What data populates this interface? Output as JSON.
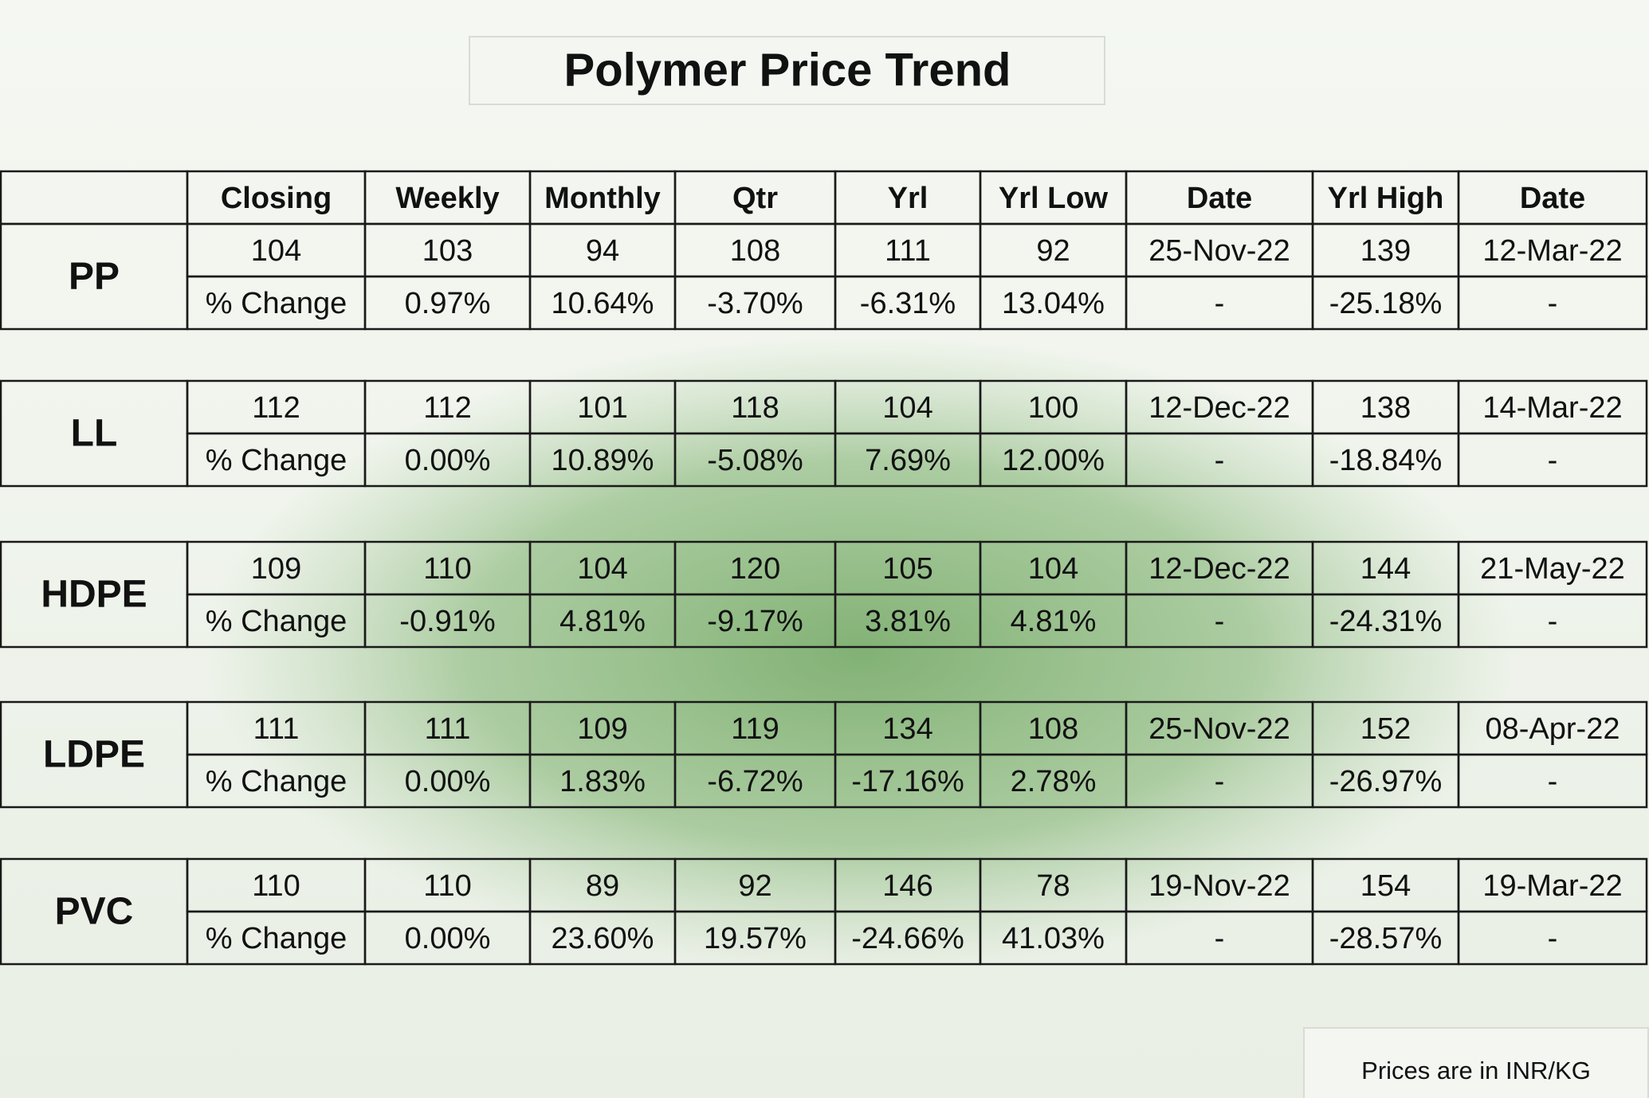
{
  "title": "Polymer Price Trend",
  "header": [
    "Closing",
    "Weekly",
    "Monthly",
    "Qtr",
    "Yrl",
    "Yrl Low",
    "Date",
    "Yrl High",
    "Date"
  ],
  "groups": [
    {
      "name": "PP",
      "price": [
        "104",
        "103",
        "94",
        "108",
        "111",
        "92",
        "25-Nov-22",
        "139",
        "12-Mar-22"
      ],
      "change": [
        "% Change",
        "0.97%",
        "10.64%",
        "-3.70%",
        "-6.31%",
        "13.04%",
        "-",
        "-25.18%",
        "-"
      ]
    },
    {
      "name": "LL",
      "price": [
        "112",
        "112",
        "101",
        "118",
        "104",
        "100",
        "12-Dec-22",
        "138",
        "14-Mar-22"
      ],
      "change": [
        "% Change",
        "0.00%",
        "10.89%",
        "-5.08%",
        "7.69%",
        "12.00%",
        "-",
        "-18.84%",
        "-"
      ]
    },
    {
      "name": "HDPE",
      "price": [
        "109",
        "110",
        "104",
        "120",
        "105",
        "104",
        "12-Dec-22",
        "144",
        "21-May-22"
      ],
      "change": [
        "% Change",
        "-0.91%",
        "4.81%",
        "-9.17%",
        "3.81%",
        "4.81%",
        "-",
        "-24.31%",
        "-"
      ]
    },
    {
      "name": "LDPE",
      "price": [
        "111",
        "111",
        "109",
        "119",
        "134",
        "108",
        "25-Nov-22",
        "152",
        "08-Apr-22"
      ],
      "change": [
        "% Change",
        "0.00%",
        "1.83%",
        "-6.72%",
        "-17.16%",
        "2.78%",
        "-",
        "-26.97%",
        "-"
      ]
    },
    {
      "name": "PVC",
      "price": [
        "110",
        "110",
        "89",
        "92",
        "146",
        "78",
        "19-Nov-22",
        "154",
        "19-Mar-22"
      ],
      "change": [
        "% Change",
        "0.00%",
        "23.60%",
        "19.57%",
        "-24.66%",
        "41.03%",
        "-",
        "-28.57%",
        "-"
      ]
    }
  ],
  "note": "Prices are in INR/KG"
}
